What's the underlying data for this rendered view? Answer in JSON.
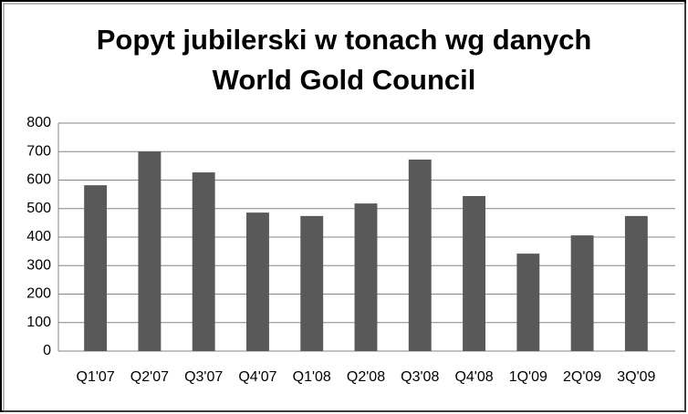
{
  "chart_data": {
    "type": "bar",
    "title": [
      "Popyt jubilerski w tonach wg danych",
      "World Gold Council"
    ],
    "categories": [
      "Q1'07",
      "Q2'07",
      "Q3'07",
      "Q4'07",
      "Q1'08",
      "Q2'08",
      "Q3'08",
      "Q4'08",
      "1Q'09",
      "2Q'09",
      "3Q'09"
    ],
    "values": [
      582,
      700,
      627,
      486,
      474,
      518,
      672,
      544,
      342,
      406,
      474
    ],
    "color": "#595959",
    "ylim": [
      0,
      800
    ],
    "yticks": [
      0,
      100,
      200,
      300,
      400,
      500,
      600,
      700,
      800
    ],
    "grid": true
  }
}
